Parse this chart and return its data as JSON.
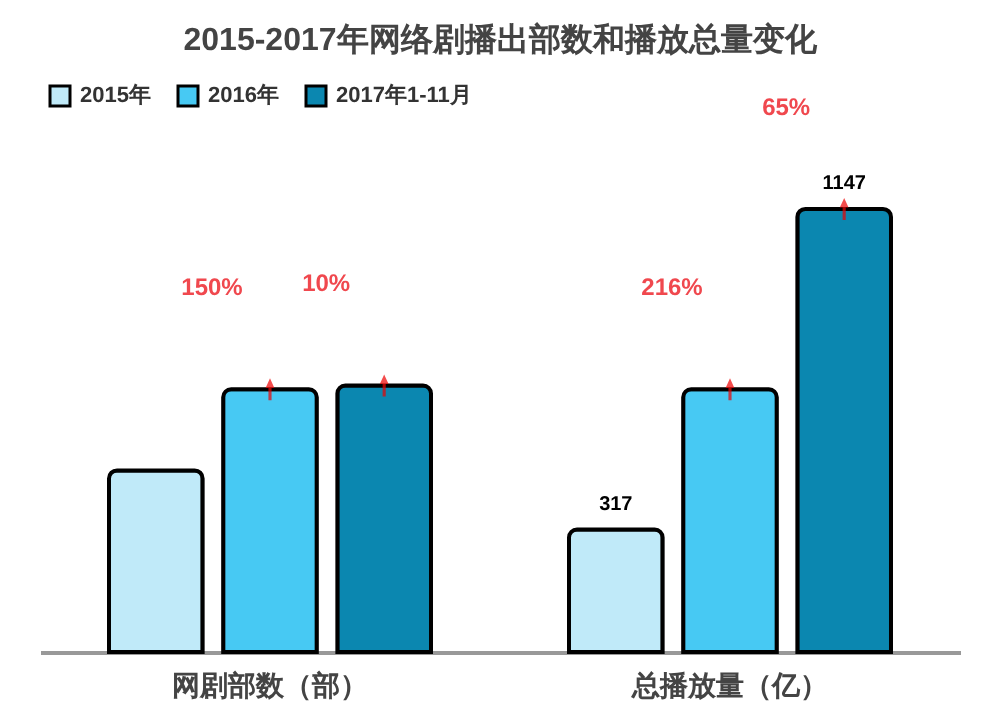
{
  "chart_data": {
    "type": "bar",
    "title": "2015-2017年网络剧播出部数和播放总量变化",
    "categories": [
      "网剧部数（部）",
      "总播放量（亿）"
    ],
    "series": [
      {
        "name": "2015年",
        "color": "#c0eaf9",
        "values": [
          470,
          317
        ],
        "value_labels": [
          null,
          "317"
        ]
      },
      {
        "name": "2016年",
        "color": "#47c9f3",
        "values": [
          680,
          680
        ],
        "value_labels": [
          null,
          null
        ]
      },
      {
        "name": "2017年1-11月",
        "color": "#0b87b0",
        "values": [
          690,
          1147
        ],
        "value_labels": [
          null,
          "1147"
        ]
      }
    ],
    "annotations": [
      "150%",
      "10%",
      "216%",
      "65%"
    ],
    "legend": "top left",
    "grid": false
  }
}
